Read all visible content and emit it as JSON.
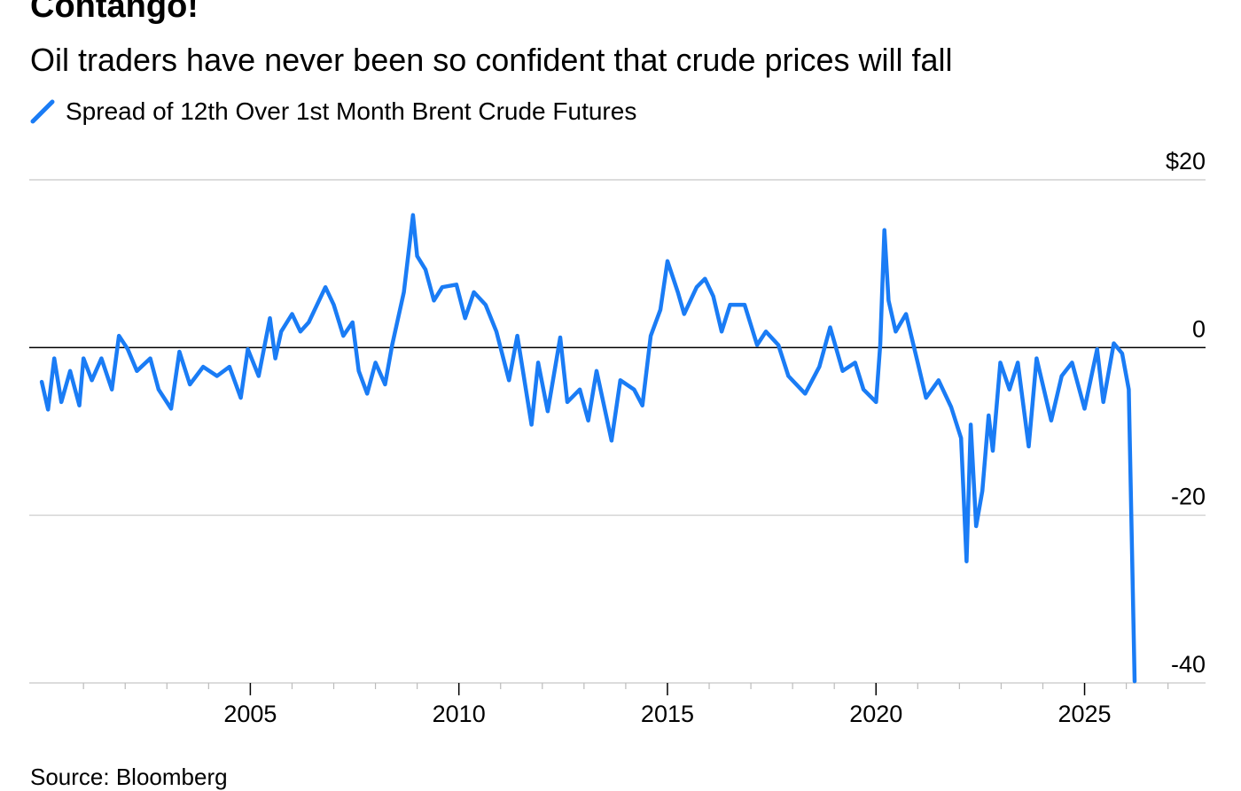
{
  "title": "Contango!",
  "subtitle": "Oil traders have never been so confident that crude prices will fall",
  "source": "Source: Bloomberg",
  "chart_data": {
    "type": "line",
    "title": "Contango!",
    "subtitle": "Oil traders have never been so confident that crude prices will fall",
    "legend_position": "top-left",
    "grid": true,
    "xlim": [
      1999.7,
      2027.9
    ],
    "ylim": [
      -40,
      20
    ],
    "x_ticks": [
      2005,
      2010,
      2015,
      2020,
      2025
    ],
    "x_tick_labels": [
      "2005",
      "2010",
      "2015",
      "2020",
      "2025"
    ],
    "y_ticks": [
      20,
      0,
      -20,
      -40
    ],
    "y_tick_labels": [
      "$20",
      "0",
      "-20",
      "-40"
    ],
    "series": [
      {
        "name": "Spread of 12th Over 1st Month Brent Crude Futures",
        "color": "#1a7cf5",
        "x": [
          2000.0,
          2000.15,
          2000.3,
          2000.47,
          2000.68,
          2000.9,
          2001.0,
          2001.2,
          2001.43,
          2001.68,
          2001.85,
          2002.06,
          2002.28,
          2002.6,
          2002.8,
          2003.1,
          2003.3,
          2003.55,
          2003.87,
          2004.2,
          2004.5,
          2004.77,
          2004.94,
          2005.2,
          2005.47,
          2005.6,
          2005.74,
          2006.0,
          2006.2,
          2006.4,
          2006.8,
          2007.0,
          2007.23,
          2007.45,
          2007.6,
          2007.8,
          2008.0,
          2008.23,
          2008.4,
          2008.68,
          2008.9,
          2009.0,
          2009.2,
          2009.4,
          2009.6,
          2009.94,
          2010.15,
          2010.36,
          2010.64,
          2010.9,
          2011.2,
          2011.4,
          2011.74,
          2011.9,
          2012.13,
          2012.43,
          2012.6,
          2012.9,
          2013.1,
          2013.3,
          2013.66,
          2013.87,
          2014.2,
          2014.4,
          2014.6,
          2014.83,
          2015.0,
          2015.25,
          2015.4,
          2015.7,
          2015.9,
          2016.1,
          2016.3,
          2016.5,
          2016.85,
          2017.15,
          2017.36,
          2017.66,
          2017.9,
          2018.3,
          2018.64,
          2018.9,
          2019.2,
          2019.5,
          2019.7,
          2020.0,
          2020.1,
          2020.2,
          2020.3,
          2020.47,
          2020.72,
          2021.0,
          2021.2,
          2021.5,
          2021.8,
          2022.04,
          2022.17,
          2022.27,
          2022.4,
          2022.55,
          2022.7,
          2022.8,
          2022.98,
          2023.2,
          2023.4,
          2023.66,
          2023.85,
          2024.2,
          2024.45,
          2024.7,
          2025.0,
          2025.3,
          2025.45,
          2025.7,
          2025.9,
          2026.06,
          2026.2
        ],
        "y": [
          -4.1,
          -7.4,
          -1.3,
          -6.5,
          -2.8,
          -6.9,
          -1.3,
          -3.9,
          -1.3,
          -5.0,
          1.4,
          -0.2,
          -2.8,
          -1.3,
          -5.0,
          -7.3,
          -0.5,
          -4.4,
          -2.3,
          -3.4,
          -2.3,
          -6.0,
          -0.2,
          -3.4,
          3.5,
          -1.3,
          1.9,
          4.0,
          1.9,
          3.0,
          7.2,
          5.1,
          1.4,
          3.0,
          -2.8,
          -5.5,
          -1.8,
          -4.4,
          0.3,
          6.6,
          15.8,
          10.9,
          9.3,
          5.6,
          7.2,
          7.5,
          3.5,
          6.6,
          5.1,
          1.9,
          -3.9,
          1.4,
          -9.2,
          -1.8,
          -7.6,
          1.2,
          -6.5,
          -5.0,
          -8.7,
          -2.8,
          -11.1,
          -3.9,
          -5.0,
          -6.9,
          1.4,
          4.5,
          10.3,
          6.6,
          4.0,
          7.2,
          8.2,
          6.1,
          1.9,
          5.1,
          5.1,
          0.3,
          1.9,
          0.3,
          -3.4,
          -5.5,
          -2.3,
          2.4,
          -2.8,
          -1.8,
          -5.0,
          -6.5,
          0.3,
          14.0,
          5.6,
          1.9,
          4.0,
          -1.8,
          -6.0,
          -3.9,
          -7.1,
          -10.8,
          -25.5,
          -9.2,
          -21.3,
          -17.1,
          -8.1,
          -12.3,
          -1.8,
          -5.0,
          -1.8,
          -11.8,
          -1.3,
          -8.7,
          -3.4,
          -1.8,
          -7.3,
          -0.2,
          -6.5,
          0.5,
          -0.7,
          -5.0,
          -39.8
        ]
      }
    ]
  }
}
